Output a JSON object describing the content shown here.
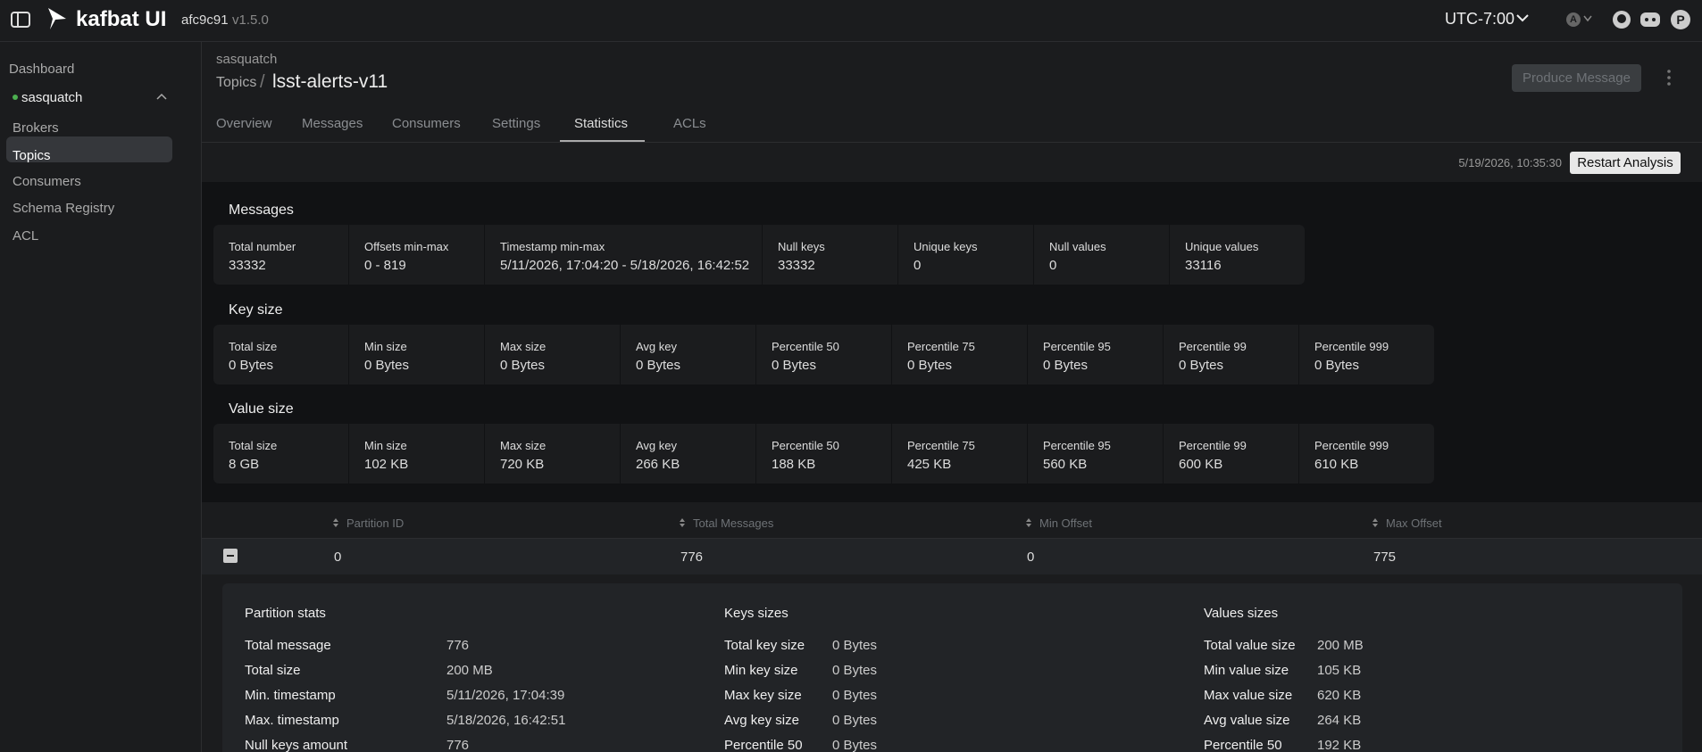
{
  "topbar": {
    "brand": "kafbat UI",
    "commit": "afc9c91",
    "version": "v1.5.0",
    "timezone": "UTC-7:00",
    "theme_initial": "A",
    "avatar_initial": "P"
  },
  "sidebar": {
    "dashboard": "Dashboard",
    "cluster": "sasquatch",
    "items": [
      "Brokers",
      "Topics",
      "Consumers",
      "Schema Registry",
      "ACL"
    ]
  },
  "breadcrumb": {
    "cluster": "sasquatch",
    "section": "Topics",
    "separator": "/",
    "topic": "lsst-alerts-v11"
  },
  "actions": {
    "produce": "Produce Message"
  },
  "tabs": [
    "Overview",
    "Messages",
    "Consumers",
    "Settings",
    "Statistics",
    "ACLs"
  ],
  "analysis": {
    "timestamp": "5/19/2026, 10:35:30",
    "restart": "Restart Analysis"
  },
  "statistics": {
    "groups": [
      {
        "title": "Messages",
        "cards": [
          {
            "label": "Total number",
            "value": "33332"
          },
          {
            "label": "Offsets min-max",
            "value": "0 - 819"
          },
          {
            "label": "Timestamp min-max",
            "value": "5/11/2026, 17:04:20 - 5/18/2026, 16:42:52"
          },
          {
            "label": "Null keys",
            "value": "33332"
          },
          {
            "label": "Unique keys",
            "value": "0"
          },
          {
            "label": "Null values",
            "value": "0"
          },
          {
            "label": "Unique values",
            "value": "33116"
          }
        ]
      },
      {
        "title": "Key size",
        "cards": [
          {
            "label": "Total size",
            "value": "0 Bytes"
          },
          {
            "label": "Min size",
            "value": "0 Bytes"
          },
          {
            "label": "Max size",
            "value": "0 Bytes"
          },
          {
            "label": "Avg key",
            "value": "0 Bytes"
          },
          {
            "label": "Percentile 50",
            "value": "0 Bytes"
          },
          {
            "label": "Percentile 75",
            "value": "0 Bytes"
          },
          {
            "label": "Percentile 95",
            "value": "0 Bytes"
          },
          {
            "label": "Percentile 99",
            "value": "0 Bytes"
          },
          {
            "label": "Percentile 999",
            "value": "0 Bytes"
          }
        ]
      },
      {
        "title": "Value size",
        "cards": [
          {
            "label": "Total size",
            "value": "8 GB"
          },
          {
            "label": "Min size",
            "value": "102 KB"
          },
          {
            "label": "Max size",
            "value": "720 KB"
          },
          {
            "label": "Avg key",
            "value": "266 KB"
          },
          {
            "label": "Percentile 50",
            "value": "188 KB"
          },
          {
            "label": "Percentile 75",
            "value": "425 KB"
          },
          {
            "label": "Percentile 95",
            "value": "560 KB"
          },
          {
            "label": "Percentile 99",
            "value": "600 KB"
          },
          {
            "label": "Percentile 999",
            "value": "610 KB"
          }
        ]
      }
    ]
  },
  "partitions": {
    "columns": [
      "Partition ID",
      "Total Messages",
      "Min Offset",
      "Max Offset"
    ],
    "rows": [
      [
        "0",
        "776",
        "0",
        "775"
      ]
    ]
  },
  "partition_detail": {
    "sections": [
      {
        "title": "Partition stats",
        "rows": [
          [
            "Total message",
            "776"
          ],
          [
            "Total size",
            "200 MB"
          ],
          [
            "Min. timestamp",
            "5/11/2026, 17:04:39"
          ],
          [
            "Max. timestamp",
            "5/18/2026, 16:42:51"
          ],
          [
            "Null keys amount",
            "776"
          ]
        ]
      },
      {
        "title": "Keys sizes",
        "rows": [
          [
            "Total key size",
            "0 Bytes"
          ],
          [
            "Min key size",
            "0 Bytes"
          ],
          [
            "Max key size",
            "0 Bytes"
          ],
          [
            "Avg key size",
            "0 Bytes"
          ],
          [
            "Percentile 50",
            "0 Bytes"
          ]
        ]
      },
      {
        "title": "Values sizes",
        "rows": [
          [
            "Total value size",
            "200 MB"
          ],
          [
            "Min value size",
            "105 KB"
          ],
          [
            "Max value size",
            "620 KB"
          ],
          [
            "Avg value size",
            "264 KB"
          ],
          [
            "Percentile 50",
            "192 KB"
          ]
        ]
      }
    ]
  }
}
